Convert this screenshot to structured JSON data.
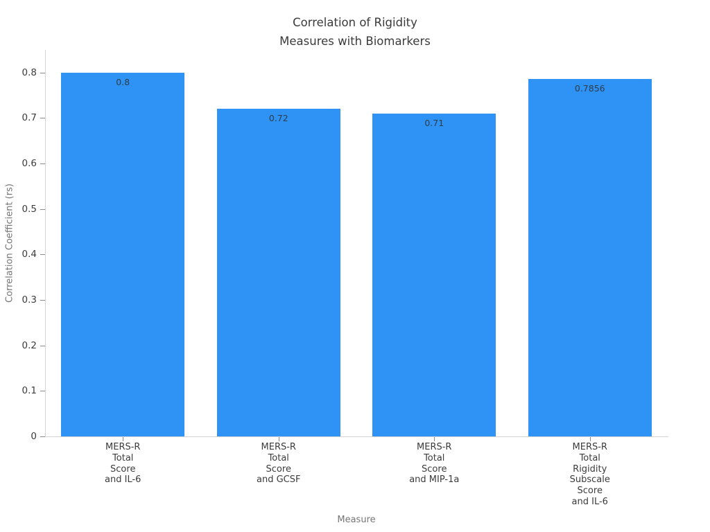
{
  "chart_data": {
    "type": "bar",
    "title": "Correlation of Rigidity\nMeasures with Biomarkers",
    "xlabel": "Measure",
    "ylabel": "Correlation Coefficient (rs)",
    "categories": [
      "MERS-R\nTotal\nScore\nand IL-6",
      "MERS-R\nTotal\nScore\nand GCSF",
      "MERS-R\nTotal\nScore\nand MIP-1a",
      "MERS-R\nTotal\nRigidity\nSubscale\nScore\nand IL-6"
    ],
    "values": [
      0.8,
      0.72,
      0.71,
      0.7856
    ],
    "value_labels": [
      "0.8",
      "0.72",
      "0.71",
      "0.7856"
    ],
    "ytick_values": [
      0,
      0.1,
      0.2,
      0.3,
      0.4,
      0.5,
      0.6,
      0.7,
      0.8
    ],
    "ytick_labels": [
      "0",
      "0.1",
      "0.2",
      "0.3",
      "0.4",
      "0.5",
      "0.6",
      "0.7",
      "0.8"
    ],
    "ylim": [
      0,
      0.85
    ],
    "grid": false,
    "legend": null,
    "bar_color": "#2F92F5"
  }
}
